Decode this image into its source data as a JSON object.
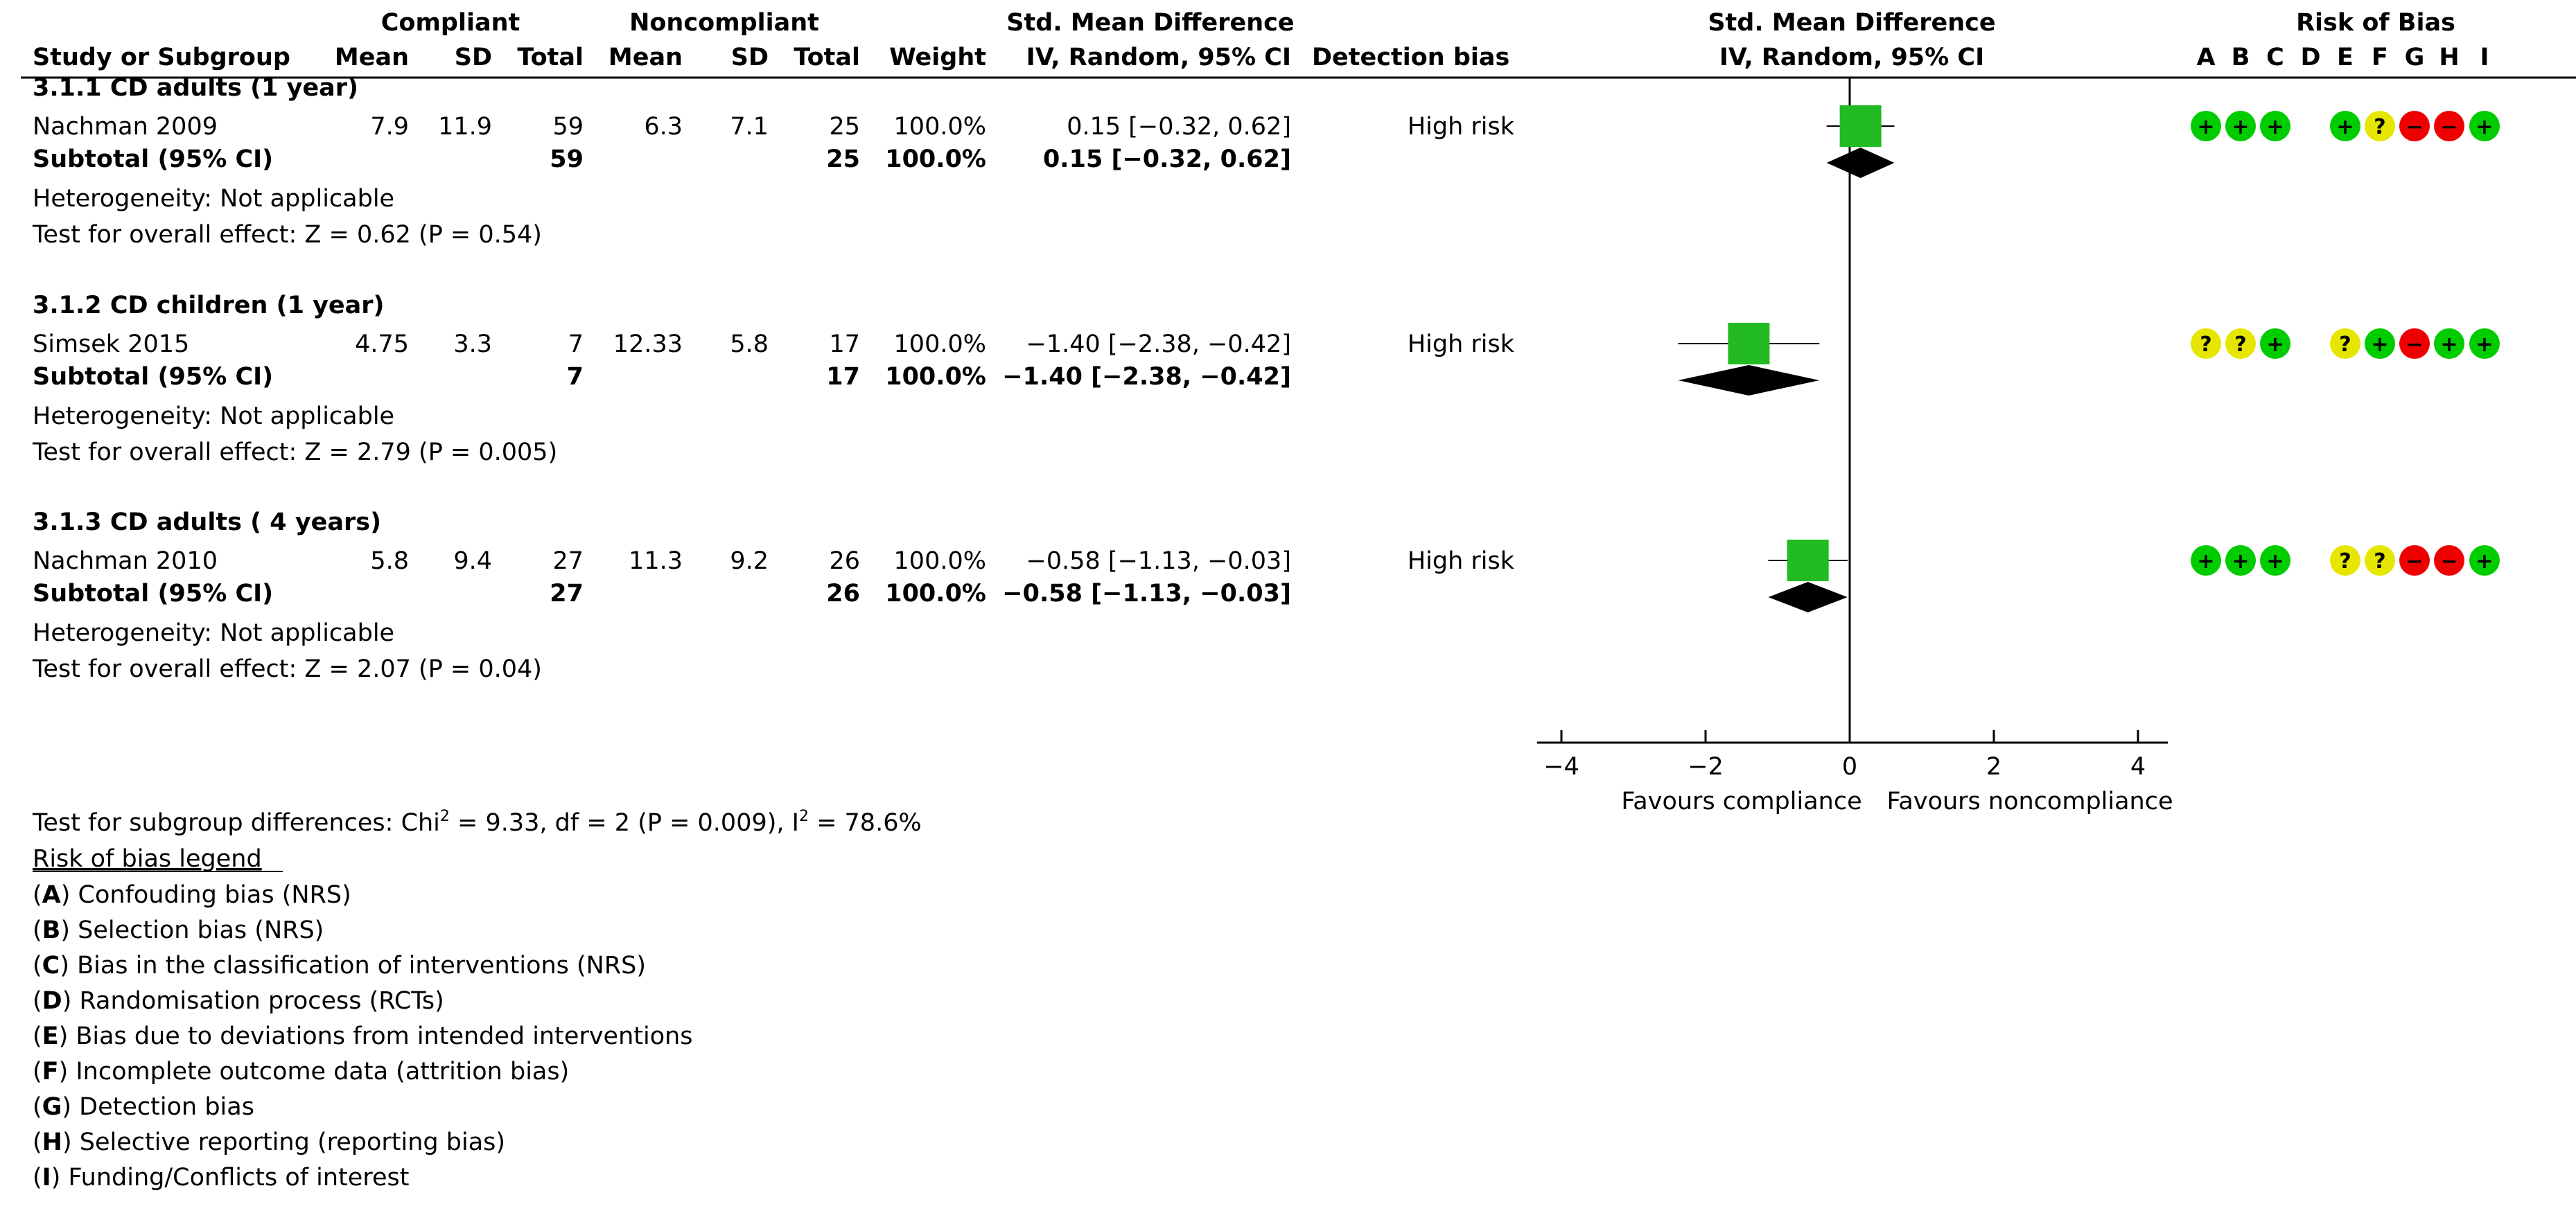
{
  "header": {
    "group1": "Compliant",
    "group2": "Noncompliant",
    "effect": "Std. Mean Difference",
    "plot_title": "Std. Mean Difference",
    "risk_title": "Risk of Bias",
    "cols": {
      "study": "Study or Subgroup",
      "mean1": "Mean",
      "sd1": "SD",
      "total1": "Total",
      "mean2": "Mean",
      "sd2": "SD",
      "total2": "Total",
      "weight": "Weight",
      "ci": "IV, Random, 95% CI",
      "detection": "Detection bias",
      "plot_ci": "IV, Random, 95% CI"
    },
    "risk_letters": [
      "A",
      "B",
      "C",
      "D",
      "E",
      "F",
      "G",
      "H",
      "I"
    ]
  },
  "subgroups": [
    {
      "title": "3.1.1 CD adults (1 year)",
      "study": {
        "name": "Nachman 2009",
        "mean1": "7.9",
        "sd1": "11.9",
        "total1": "59",
        "mean2": "6.3",
        "sd2": "7.1",
        "total2": "25",
        "weight": "100.0%",
        "ci": "0.15 [−0.32, 0.62]",
        "detection": "High risk"
      },
      "subtotal": {
        "label": "Subtotal (95% CI)",
        "total1": "59",
        "total2": "25",
        "weight": "100.0%",
        "ci": "0.15 [−0.32, 0.62]"
      },
      "heterogeneity": "Heterogeneity: Not applicable",
      "overall": "Test for overall effect: Z = 0.62 (P = 0.54)",
      "risk": [
        "+",
        "+",
        "+",
        "",
        "+",
        "?",
        "−",
        "−",
        "+"
      ]
    },
    {
      "title": "3.1.2 CD children (1 year)",
      "study": {
        "name": "Simsek 2015",
        "mean1": "4.75",
        "sd1": "3.3",
        "total1": "7",
        "mean2": "12.33",
        "sd2": "5.8",
        "total2": "17",
        "weight": "100.0%",
        "ci": "−1.40 [−2.38, −0.42]",
        "detection": "High risk"
      },
      "subtotal": {
        "label": "Subtotal (95% CI)",
        "total1": "7",
        "total2": "17",
        "weight": "100.0%",
        "ci": "−1.40 [−2.38, −0.42]"
      },
      "heterogeneity": "Heterogeneity: Not applicable",
      "overall": "Test for overall effect: Z = 2.79 (P = 0.005)",
      "risk": [
        "?",
        "?",
        "+",
        "",
        "?",
        "+",
        "−",
        "+",
        "+"
      ]
    },
    {
      "title": "3.1.3 CD adults ( 4 years)",
      "study": {
        "name": "Nachman 2010",
        "mean1": "5.8",
        "sd1": "9.4",
        "total1": "27",
        "mean2": "11.3",
        "sd2": "9.2",
        "total2": "26",
        "weight": "100.0%",
        "ci": "−0.58 [−1.13, −0.03]",
        "detection": "High risk"
      },
      "subtotal": {
        "label": "Subtotal (95% CI)",
        "total1": "27",
        "total2": "26",
        "weight": "100.0%",
        "ci": "−0.58 [−1.13, −0.03]"
      },
      "heterogeneity": "Heterogeneity: Not applicable",
      "overall": "Test for overall effect: Z = 2.07 (P = 0.04)",
      "risk": [
        "+",
        "+",
        "+",
        "",
        "?",
        "?",
        "−",
        "−",
        "+"
      ]
    }
  ],
  "subgroup_test": {
    "prefix": "Test for subgroup differences: Chi",
    "sup1": "2",
    "middle": " = 9.33, df = 2 (P = 0.009), I",
    "sup2": "2",
    "suffix": " = 78.6%"
  },
  "legend": {
    "title": "Risk of bias legend",
    "items": [
      {
        "letter": "A",
        "text": " Confouding bias (NRS)"
      },
      {
        "letter": "B",
        "text": " Selection bias (NRS)"
      },
      {
        "letter": "C",
        "text": " Bias in the classification of interventions (NRS)"
      },
      {
        "letter": "D",
        "text": " Randomisation process (RCTs)"
      },
      {
        "letter": "E",
        "text": " Bias due to deviations from intended interventions"
      },
      {
        "letter": "F",
        "text": " Incomplete outcome data (attrition bias)"
      },
      {
        "letter": "G",
        "text": " Detection bias"
      },
      {
        "letter": "H",
        "text": " Selective reporting (reporting bias)"
      },
      {
        "letter": "I",
        "text": " Funding/Conflicts of interest"
      }
    ]
  },
  "colors": {
    "low": "#00cc00",
    "unclear": "#e6e600",
    "high": "#ee0000",
    "square": "#22bb22"
  },
  "chart_data": {
    "type": "forest",
    "xlim": [
      -4,
      4
    ],
    "xticks": [
      -4,
      -2,
      0,
      2,
      4
    ],
    "xtick_labels": [
      "−4",
      "−2",
      "0",
      "2",
      "4"
    ],
    "favours_left": "Favours compliance",
    "favours_right": "Favours noncompliance",
    "studies": [
      {
        "name": "Nachman 2009",
        "smd": 0.15,
        "lo": -0.32,
        "hi": 0.62,
        "weight": 100.0
      },
      {
        "name": "Simsek 2015",
        "smd": -1.4,
        "lo": -2.38,
        "hi": -0.42,
        "weight": 100.0
      },
      {
        "name": "Nachman 2010",
        "smd": -0.58,
        "lo": -1.13,
        "hi": -0.03,
        "weight": 100.0
      }
    ],
    "subtotals": [
      {
        "smd": 0.15,
        "lo": -0.32,
        "hi": 0.62
      },
      {
        "smd": -1.4,
        "lo": -2.38,
        "hi": -0.42
      },
      {
        "smd": -0.58,
        "lo": -1.13,
        "hi": -0.03
      }
    ]
  }
}
